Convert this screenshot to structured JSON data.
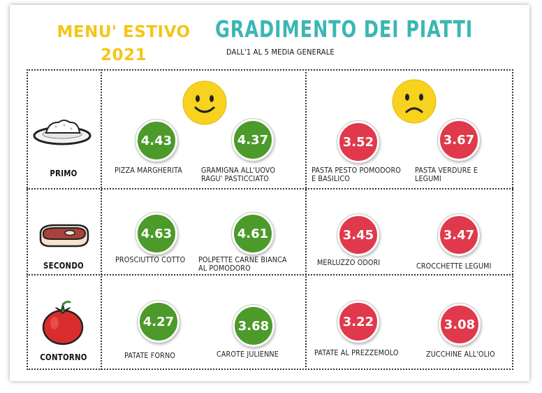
{
  "header": {
    "menu_title_line1": "MENU' ESTIVO",
    "menu_title_line2": "2021",
    "main_title": "GRADIMENTO DEI PIATTI",
    "subtitle": "DALL'1 AL 5 MEDIA GENERALE"
  },
  "colors": {
    "green": "#4c9a2a",
    "red": "#e0394c",
    "title_yellow": "#f5c518",
    "title_teal": "#3bb7b3"
  },
  "faces": {
    "happy": "happy-face-icon",
    "sad": "sad-face-icon"
  },
  "rows": [
    {
      "category": "PRIMO",
      "icon": "rice-plate-icon",
      "top": [
        {
          "score": "4.43",
          "dish": "PIZZA MARGHERITA"
        },
        {
          "score": "4.37",
          "dish": "GRAMIGNA ALL'UOVO RAGU' PASTICCIATO"
        }
      ],
      "bottom": [
        {
          "score": "3.52",
          "dish": "PASTA PESTO POMODORO E BASILICO"
        },
        {
          "score": "3.67",
          "dish": "PASTA VERDURE E LEGUMI"
        }
      ]
    },
    {
      "category": "SECONDO",
      "icon": "steak-icon",
      "top": [
        {
          "score": "4.63",
          "dish": "PROSCIUTTO COTTO"
        },
        {
          "score": "4.61",
          "dish": "POLPETTE CARNE BIANCA AL POMODORO"
        }
      ],
      "bottom": [
        {
          "score": "3.45",
          "dish": "MERLUZZO ODORI"
        },
        {
          "score": "3.47",
          "dish": "CROCCHETTE LEGUMI"
        }
      ]
    },
    {
      "category": "CONTORNO",
      "icon": "tomato-icon",
      "top": [
        {
          "score": "4.27",
          "dish": "PATATE FORNO"
        },
        {
          "score": "3.68",
          "dish": "CAROTE JULIENNE"
        }
      ],
      "bottom": [
        {
          "score": "3.22",
          "dish": "PATATE AL PREZZEMOLO"
        },
        {
          "score": "3.08",
          "dish": "ZUCCHINE ALL'OLIO"
        }
      ]
    }
  ]
}
